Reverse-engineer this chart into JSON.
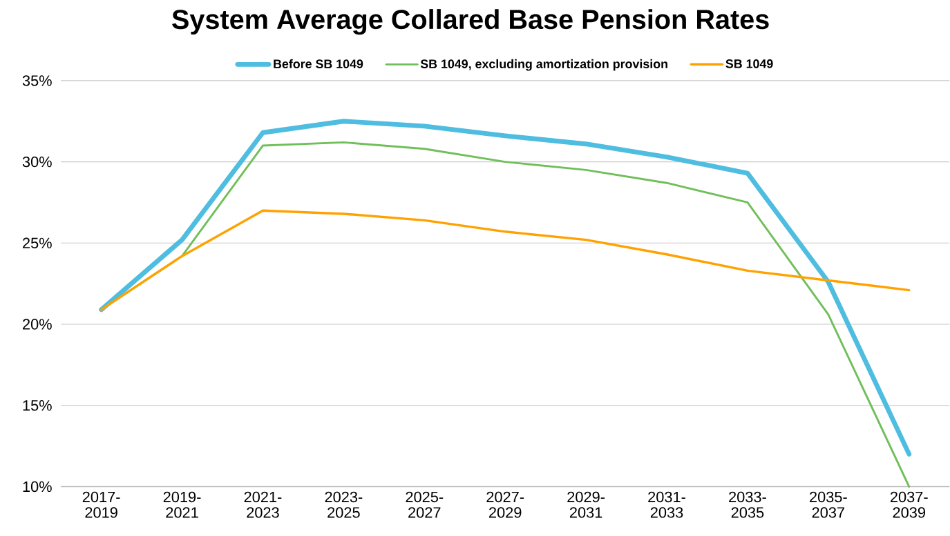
{
  "chart_data": {
    "type": "line",
    "title": "System Average Collared Base Pension Rates",
    "categories": [
      "2017-2019",
      "2019-2021",
      "2021-2023",
      "2023-2025",
      "2025-2027",
      "2027-2029",
      "2029-2031",
      "2031-2033",
      "2033-2035",
      "2035-2037",
      "2037-2039"
    ],
    "series": [
      {
        "name": "Before SB 1049",
        "color": "#4fbde0",
        "values": [
          20.9,
          25.2,
          31.8,
          32.5,
          32.2,
          31.6,
          31.1,
          30.3,
          29.3,
          22.6,
          12.0
        ]
      },
      {
        "name": "SB 1049, excluding amortization provision",
        "color": "#70bf5a",
        "values": [
          20.9,
          24.2,
          31.0,
          31.2,
          30.8,
          30.0,
          29.5,
          28.7,
          27.5,
          20.6,
          10.0
        ]
      },
      {
        "name": "SB 1049",
        "color": "#ffa200",
        "values": [
          20.9,
          24.2,
          27.0,
          26.8,
          26.4,
          25.7,
          25.2,
          24.3,
          23.3,
          22.7,
          22.1
        ]
      }
    ],
    "ylim": [
      10,
      35
    ],
    "yticks": [
      {
        "value": 10,
        "label": "10%"
      },
      {
        "value": 15,
        "label": "15%"
      },
      {
        "value": 20,
        "label": "20%"
      },
      {
        "value": 25,
        "label": "25%"
      },
      {
        "value": 30,
        "label": "30%"
      },
      {
        "value": 35,
        "label": "35%"
      }
    ],
    "grid": "y",
    "legend": "top"
  }
}
